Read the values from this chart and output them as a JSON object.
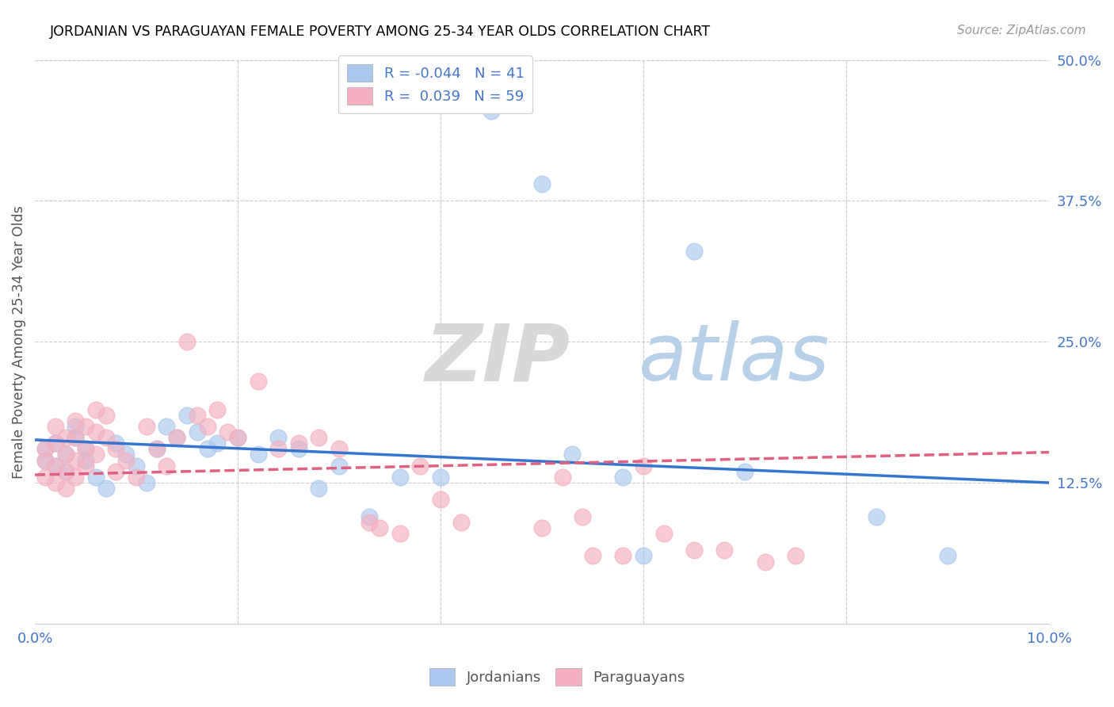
{
  "title": "JORDANIAN VS PARAGUAYAN FEMALE POVERTY AMONG 25-34 YEAR OLDS CORRELATION CHART",
  "source": "Source: ZipAtlas.com",
  "ylabel": "Female Poverty Among 25-34 Year Olds",
  "legend_labels": [
    "Jordanians",
    "Paraguayans"
  ],
  "xlim": [
    0,
    0.1
  ],
  "ylim": [
    0,
    0.5
  ],
  "xticks": [
    0.0,
    0.02,
    0.04,
    0.06,
    0.08,
    0.1
  ],
  "yticks_right": [
    0.125,
    0.25,
    0.375,
    0.5
  ],
  "yticklabels_right": [
    "12.5%",
    "25.0%",
    "37.5%",
    "50.0%"
  ],
  "R_jordanian": -0.044,
  "N_jordanian": 41,
  "R_paraguayan": 0.039,
  "N_paraguayan": 59,
  "blue_color": "#aac8ee",
  "pink_color": "#f4b0c0",
  "blue_line_color": "#3575d0",
  "pink_line_color": "#e06080",
  "watermark_zip": "ZIP",
  "watermark_atlas": "atlas",
  "jordanian_x": [
    0.001,
    0.001,
    0.002,
    0.002,
    0.003,
    0.003,
    0.004,
    0.004,
    0.005,
    0.005,
    0.006,
    0.007,
    0.008,
    0.009,
    0.01,
    0.011,
    0.012,
    0.013,
    0.014,
    0.015,
    0.016,
    0.017,
    0.018,
    0.02,
    0.022,
    0.024,
    0.026,
    0.028,
    0.03,
    0.033,
    0.036,
    0.04,
    0.045,
    0.05,
    0.053,
    0.058,
    0.06,
    0.065,
    0.07,
    0.083,
    0.09
  ],
  "jordanian_y": [
    0.155,
    0.145,
    0.16,
    0.14,
    0.15,
    0.135,
    0.175,
    0.165,
    0.155,
    0.145,
    0.13,
    0.12,
    0.16,
    0.15,
    0.14,
    0.125,
    0.155,
    0.175,
    0.165,
    0.185,
    0.17,
    0.155,
    0.16,
    0.165,
    0.15,
    0.165,
    0.155,
    0.12,
    0.14,
    0.095,
    0.13,
    0.13,
    0.455,
    0.39,
    0.15,
    0.13,
    0.06,
    0.33,
    0.135,
    0.095,
    0.06
  ],
  "paraguayan_x": [
    0.001,
    0.001,
    0.001,
    0.002,
    0.002,
    0.002,
    0.002,
    0.003,
    0.003,
    0.003,
    0.003,
    0.004,
    0.004,
    0.004,
    0.004,
    0.005,
    0.005,
    0.005,
    0.006,
    0.006,
    0.006,
    0.007,
    0.007,
    0.008,
    0.008,
    0.009,
    0.01,
    0.011,
    0.012,
    0.013,
    0.014,
    0.015,
    0.016,
    0.017,
    0.018,
    0.019,
    0.02,
    0.022,
    0.024,
    0.026,
    0.028,
    0.03,
    0.033,
    0.034,
    0.036,
    0.038,
    0.04,
    0.042,
    0.05,
    0.052,
    0.054,
    0.055,
    0.058,
    0.06,
    0.062,
    0.065,
    0.068,
    0.072,
    0.075
  ],
  "paraguayan_y": [
    0.155,
    0.145,
    0.13,
    0.175,
    0.16,
    0.14,
    0.125,
    0.165,
    0.15,
    0.135,
    0.12,
    0.18,
    0.165,
    0.145,
    0.13,
    0.175,
    0.155,
    0.14,
    0.19,
    0.17,
    0.15,
    0.185,
    0.165,
    0.155,
    0.135,
    0.145,
    0.13,
    0.175,
    0.155,
    0.14,
    0.165,
    0.25,
    0.185,
    0.175,
    0.19,
    0.17,
    0.165,
    0.215,
    0.155,
    0.16,
    0.165,
    0.155,
    0.09,
    0.085,
    0.08,
    0.14,
    0.11,
    0.09,
    0.085,
    0.13,
    0.095,
    0.06,
    0.06,
    0.14,
    0.08,
    0.065,
    0.065,
    0.055,
    0.06
  ],
  "blue_trend_x0": 0.0,
  "blue_trend_y0": 0.163,
  "blue_trend_x1": 0.1,
  "blue_trend_y1": 0.125,
  "pink_trend_x0": 0.0,
  "pink_trend_y0": 0.132,
  "pink_trend_x1": 0.1,
  "pink_trend_y1": 0.152
}
